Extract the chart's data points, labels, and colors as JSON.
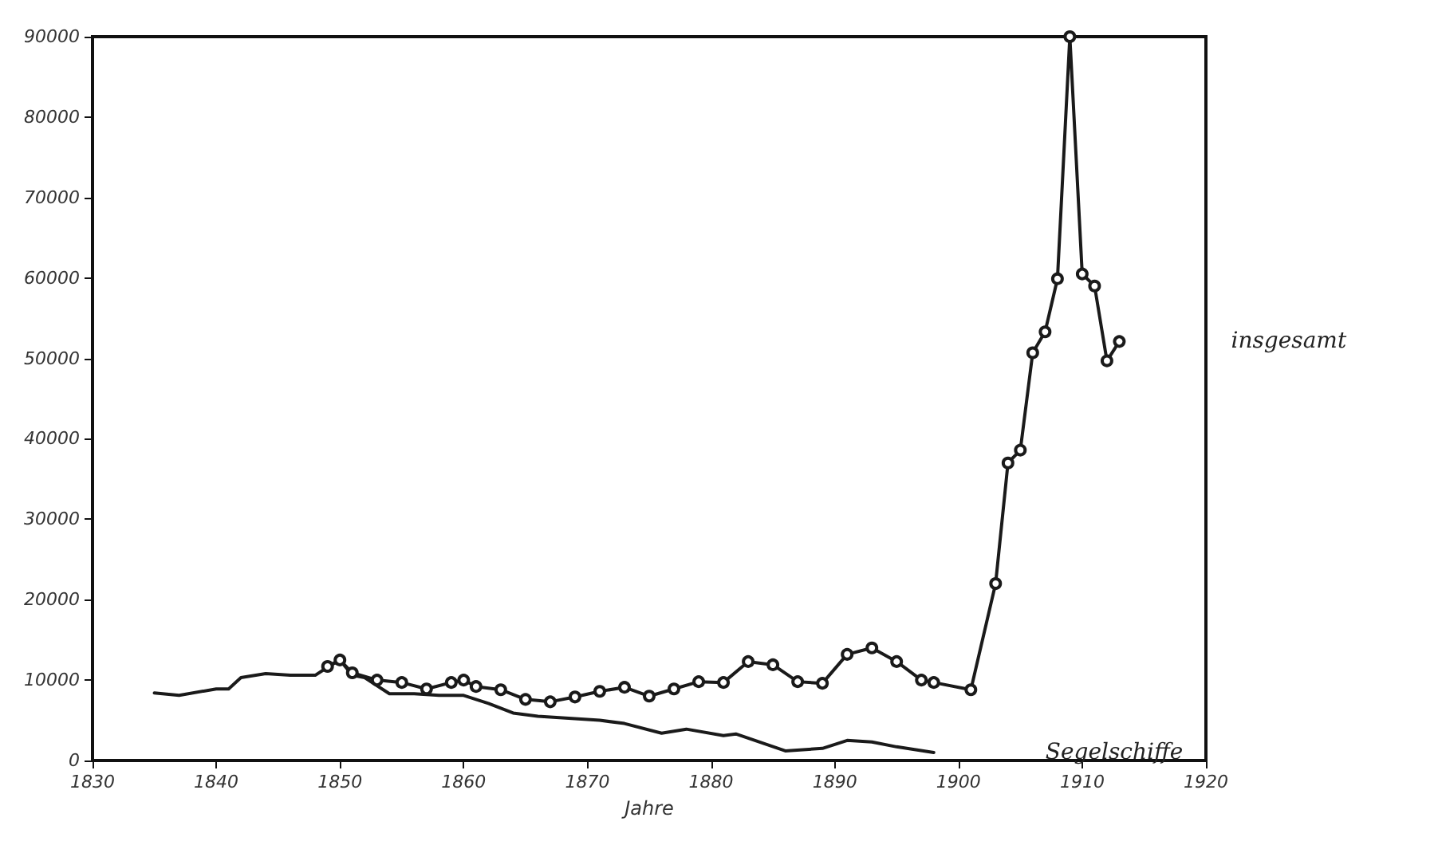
{
  "chart_data": {
    "type": "line",
    "xlabel": "Jahre",
    "series": [
      {
        "name": "insgesamt",
        "color": "#1a1a1a",
        "marker": "circle",
        "x": [
          1849,
          1850,
          1851,
          1853,
          1855,
          1857,
          1859,
          1860,
          1861,
          1863,
          1865,
          1867,
          1869,
          1871,
          1873,
          1875,
          1877,
          1879,
          1881,
          1883,
          1885,
          1887,
          1889,
          1891,
          1893,
          1895,
          1897,
          1898,
          1901,
          1903,
          1904,
          1905,
          1906,
          1907,
          1908,
          1909,
          1910,
          1911,
          1912,
          1913
        ],
        "values": [
          11700,
          12500,
          10900,
          10000,
          9700,
          8900,
          9700,
          10000,
          9200,
          8800,
          7600,
          7300,
          7900,
          8600,
          9100,
          8000,
          8900,
          9800,
          9700,
          12300,
          11900,
          9800,
          9600,
          13200,
          14000,
          12300,
          10000,
          9700,
          8800,
          22000,
          37000,
          38600,
          50700,
          53300,
          59900,
          90000,
          60500,
          59000,
          49700,
          52100
        ]
      },
      {
        "name": "Segelschiffe",
        "color": "#1a1a1a",
        "marker": "none",
        "x": [
          1835,
          1837,
          1840,
          1841,
          1842,
          1844,
          1846,
          1848,
          1849,
          1850,
          1851,
          1852,
          1854,
          1856,
          1858,
          1860,
          1862,
          1864,
          1866,
          1871,
          1873,
          1876,
          1878,
          1881,
          1882,
          1886,
          1889,
          1891,
          1893,
          1895,
          1898
        ],
        "values": [
          8400,
          8100,
          8900,
          8900,
          10300,
          10800,
          10600,
          10600,
          11600,
          12500,
          10600,
          10300,
          8300,
          8300,
          8100,
          8100,
          7100,
          5900,
          5500,
          5000,
          4600,
          3400,
          3900,
          3100,
          3300,
          1200,
          1500,
          2500,
          2300,
          1700,
          1000
        ]
      }
    ],
    "xlim": [
      1830,
      1920
    ],
    "xticks": [
      1830,
      1840,
      1850,
      1860,
      1870,
      1880,
      1890,
      1900,
      1910,
      1920
    ],
    "ylim": [
      0,
      90000
    ],
    "yticks": [
      0,
      10000,
      20000,
      30000,
      40000,
      50000,
      60000,
      70000,
      80000,
      90000
    ],
    "grid": false,
    "legend": false
  }
}
